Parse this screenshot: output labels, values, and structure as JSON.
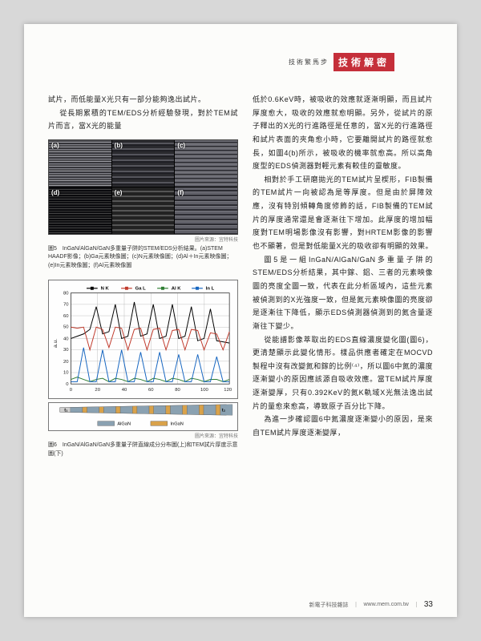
{
  "header": {
    "subtitle": "技術繁馬步",
    "title": "技術解密"
  },
  "left": {
    "p1": "試片，而低能量X光只有一部分能夠逸出試片。",
    "p2": "從長期累積的TEM/EDS分析經驗發現，對於TEM試片而言，當X光的能量",
    "fig5": {
      "labels": [
        "(a)",
        "(b)",
        "(c)",
        "(d)",
        "(e)",
        "(f)"
      ],
      "credit": "圖片來源：宜特科技",
      "caption": "圖5　InGaN/AlGaN/GaN多重量子阱的STEM/EDS分析結果。(a)STEM HAADF影像；(b)Ga元素映像圖；(c)N元素映像圖；(d)Al＋In元素映像圖；(e)In元素映像圖；(f)Al元素映像圖"
    },
    "chart": {
      "type": "line",
      "series": [
        "N K",
        "Ga L",
        "Al K",
        "In L"
      ],
      "colors": [
        "#000000",
        "#c0392b",
        "#2e7d32",
        "#1565c0"
      ],
      "ylabel": "a.u.",
      "ylim": [
        0,
        80
      ],
      "ytick_step": 10,
      "xlim": [
        0,
        130
      ],
      "xtick_step": 20,
      "background_color": "#fefefe",
      "grid_color": "#b0b0b0",
      "nk": [
        40,
        42,
        44,
        48,
        68,
        44,
        46,
        70,
        40,
        42,
        72,
        42,
        44,
        70,
        40,
        42,
        70,
        40,
        42,
        68,
        38,
        40,
        66,
        38,
        37,
        36
      ],
      "gal": [
        50,
        49,
        50,
        30,
        50,
        48,
        32,
        50,
        49,
        30,
        48,
        49,
        30,
        48,
        49,
        30,
        47,
        48,
        30,
        48,
        47,
        30,
        45,
        44,
        30,
        46
      ],
      "alk": [
        4,
        6,
        4,
        2,
        4,
        5,
        2,
        5,
        4,
        2,
        5,
        4,
        2,
        5,
        4,
        2,
        5,
        4,
        2,
        5,
        4,
        2,
        4,
        4,
        2,
        4
      ],
      "inl": [
        2,
        2,
        32,
        2,
        2,
        30,
        2,
        2,
        30,
        2,
        2,
        28,
        2,
        2,
        28,
        2,
        2,
        26,
        2,
        2,
        26,
        2,
        2,
        24,
        2,
        2
      ]
    },
    "strip": {
      "legend": [
        "AlGaN",
        "InGaN"
      ],
      "colors": [
        "#8aa1b1",
        "#d9a24a"
      ],
      "t_labels": [
        "t₁",
        "t₂"
      ],
      "credit": "圖片來源：宜特科技"
    },
    "fig6caption": "圖6　InGaN/AlGaN/GaN多重量子阱直線成分分布圖(上)和TEM試片厚度示意圖(下)"
  },
  "right": {
    "p1": "低於0.6KeV時，被吸收的效應就逐漸明顯，而且試片厚度愈大，吸收的效應就愈明顯。另外，從試片的原子釋出的X光的行進路徑是任意的，當X光的行進路徑和試片表面的夾角愈小時，它要離開試片的路徑就愈長，如圖4(b)所示，被吸收的機率就愈高。所以高角度型的EDS偵測器對輕元素有較佳的靈敏度。",
    "p2": "相對於手工研磨拋光的TEM試片呈楔形，FIB製備的TEM試片一向被認為是等厚度。但是由於屏障效應，沒有特別傾轉角度修飾的話，FIB製備的TEM試片的厚度通常還是會逐漸往下增加。此厚度的增加幅度對TEM明場影像沒有影響，對HRTEM影像的影響也不顯著，但是對低能量X光的吸收卻有明顯的效果。",
    "p3": "圖5是一組InGaN/AlGaN/GaN多重量子阱的STEM/EDS分析結果，其中鎵、鋁、三者的元素映像圖的亮度全圖一致，代表在此分析區域內，這些元素被偵測到的X光強度一致，但是氮元素映像圖的亮度卻是逐漸往下降低，顯示EDS偵測器偵測到的氮含量逐漸往下變少。",
    "p4": "從能譜影像萃取出的EDS直線濃度變化圖(圖6)，更清楚顯示此變化情形。樣品供應者確定在MOCVD製程中沒有改變氮和鎵的比例⁽⁴⁾，所以圖6中氮的濃度逐漸變小的原因應該源自吸收效應。當TEM試片厚度逐漸變厚，只有0.392KeV的氮K軌域X光無法逸出試片的量愈來愈高，導致原子百分比下降。",
    "p5": "為進一步確認圖6中氮濃度逐漸變小的原因，是來自TEM試片厚度逐漸變厚，"
  },
  "footer": {
    "mag": "新電子科技雜誌",
    "url": "www.mem.com.tw",
    "page": "33"
  }
}
